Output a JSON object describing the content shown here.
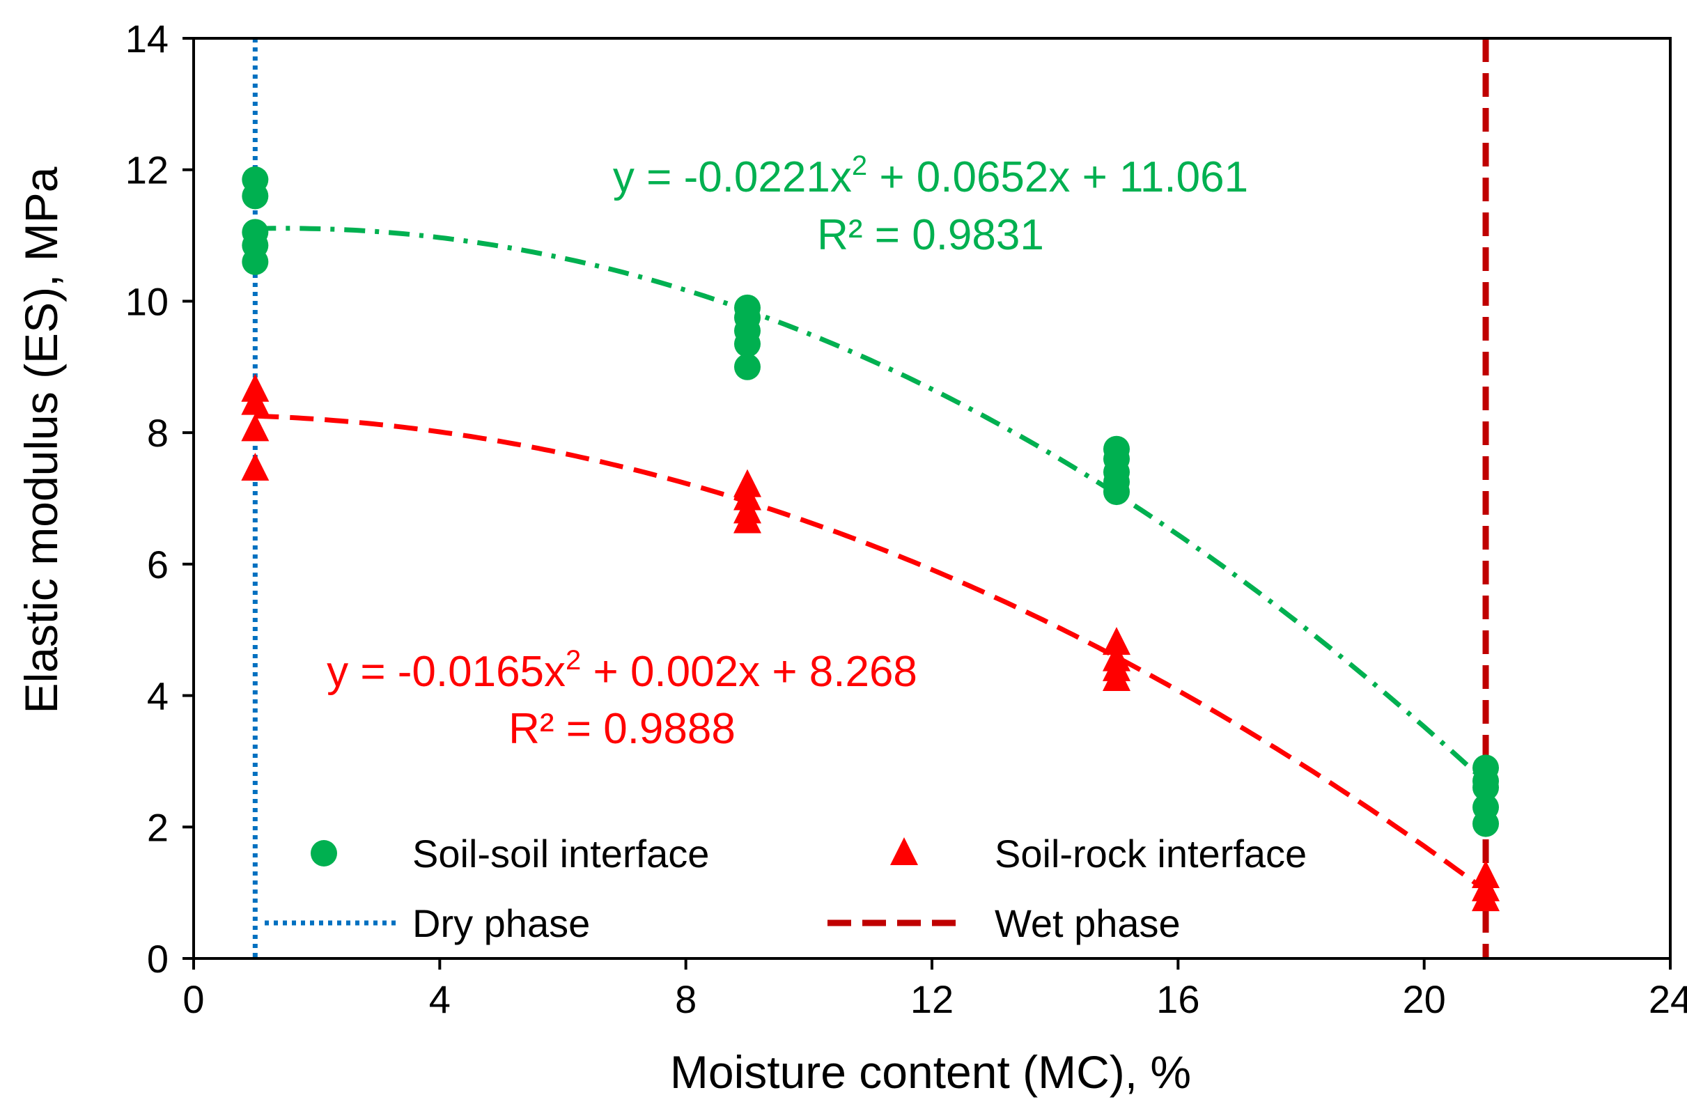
{
  "chart_data": {
    "type": "scatter",
    "xlabel": "Moisture content (MC), %",
    "ylabel": "Elastic modulus (ES), MPa",
    "xlim": [
      0,
      24
    ],
    "ylim": [
      0,
      14
    ],
    "xticks": [
      0,
      4,
      8,
      12,
      16,
      20,
      24
    ],
    "yticks": [
      0,
      2,
      4,
      6,
      8,
      10,
      12,
      14
    ],
    "series": [
      {
        "name": "Soil-soil interface",
        "marker": "circle",
        "color": "#00B050",
        "points": [
          {
            "x": 1,
            "y": 11.85
          },
          {
            "x": 1,
            "y": 11.6
          },
          {
            "x": 1,
            "y": 11.05
          },
          {
            "x": 1,
            "y": 10.85
          },
          {
            "x": 1,
            "y": 10.6
          },
          {
            "x": 9,
            "y": 9.9
          },
          {
            "x": 9,
            "y": 9.75
          },
          {
            "x": 9,
            "y": 9.55
          },
          {
            "x": 9,
            "y": 9.35
          },
          {
            "x": 9,
            "y": 9.0
          },
          {
            "x": 15,
            "y": 7.75
          },
          {
            "x": 15,
            "y": 7.6
          },
          {
            "x": 15,
            "y": 7.4
          },
          {
            "x": 15,
            "y": 7.25
          },
          {
            "x": 15,
            "y": 7.1
          },
          {
            "x": 21,
            "y": 2.9
          },
          {
            "x": 21,
            "y": 2.7
          },
          {
            "x": 21,
            "y": 2.6
          },
          {
            "x": 21,
            "y": 2.3
          },
          {
            "x": 21,
            "y": 2.05
          }
        ],
        "trendline": {
          "a": -0.0221,
          "b": 0.0652,
          "c": 11.061,
          "style": "dash-dot",
          "equation_prefix": "y = -0.0221x",
          "equation_sup": "2",
          "equation_suffix": " + 0.0652x + 11.061",
          "r2_text": "R² = 0.9831"
        }
      },
      {
        "name": "Soil-rock interface",
        "marker": "triangle",
        "color": "#FF0000",
        "points": [
          {
            "x": 1,
            "y": 8.65
          },
          {
            "x": 1,
            "y": 8.45
          },
          {
            "x": 1,
            "y": 8.05
          },
          {
            "x": 1,
            "y": 7.45
          },
          {
            "x": 9,
            "y": 7.2
          },
          {
            "x": 9,
            "y": 7.0
          },
          {
            "x": 9,
            "y": 6.8
          },
          {
            "x": 9,
            "y": 6.65
          },
          {
            "x": 15,
            "y": 4.8
          },
          {
            "x": 15,
            "y": 4.55
          },
          {
            "x": 15,
            "y": 4.4
          },
          {
            "x": 15,
            "y": 4.25
          },
          {
            "x": 21,
            "y": 1.25
          },
          {
            "x": 21,
            "y": 1.05
          },
          {
            "x": 21,
            "y": 0.9
          }
        ],
        "trendline": {
          "a": -0.0165,
          "b": 0.002,
          "c": 8.268,
          "style": "dashed",
          "equation_prefix": "y = -0.0165x",
          "equation_sup": "2",
          "equation_suffix": " + 0.002x + 8.268",
          "r2_text": "R² = 0.9888"
        }
      }
    ],
    "vertical_lines": [
      {
        "name": "Dry phase",
        "x": 1,
        "color": "#0070C0",
        "style": "dotted"
      },
      {
        "name": "Wet phase",
        "x": 21,
        "color": "#C00000",
        "style": "dashed"
      }
    ],
    "legend": [
      {
        "label": "Soil-soil interface",
        "kind": "marker-circle",
        "color": "#00B050"
      },
      {
        "label": "Soil-rock interface",
        "kind": "marker-triangle",
        "color": "#FF0000"
      },
      {
        "label": "Dry phase",
        "kind": "line-dotted",
        "color": "#0070C0"
      },
      {
        "label": "Wet phase",
        "kind": "line-dashed",
        "color": "#C00000"
      }
    ]
  }
}
